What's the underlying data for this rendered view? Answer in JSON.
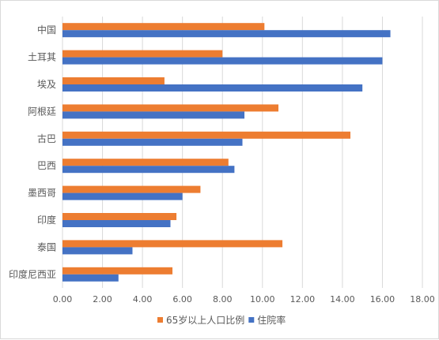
{
  "chart_data": {
    "type": "bar",
    "orientation": "horizontal",
    "categories": [
      "中国",
      "土耳其",
      "埃及",
      "阿根廷",
      "古巴",
      "巴西",
      "墨西哥",
      "印度",
      "泰国",
      "印度尼西亚"
    ],
    "series": [
      {
        "name": "65岁以上人口比例",
        "color": "#ED7D31",
        "values": [
          10.1,
          8.0,
          5.1,
          10.8,
          14.4,
          8.3,
          6.9,
          5.7,
          11.0,
          5.5
        ]
      },
      {
        "name": "住院率",
        "color": "#4472C4",
        "values": [
          16.4,
          16.0,
          15.0,
          9.1,
          9.0,
          8.6,
          6.0,
          5.4,
          3.5,
          2.8
        ]
      }
    ],
    "xlim": [
      0,
      18
    ],
    "xticks": [
      "0.00",
      "2.00",
      "4.00",
      "6.00",
      "8.00",
      "10.00",
      "12.00",
      "14.00",
      "16.00",
      "18.00"
    ],
    "grid": true,
    "legend_position": "bottom"
  }
}
